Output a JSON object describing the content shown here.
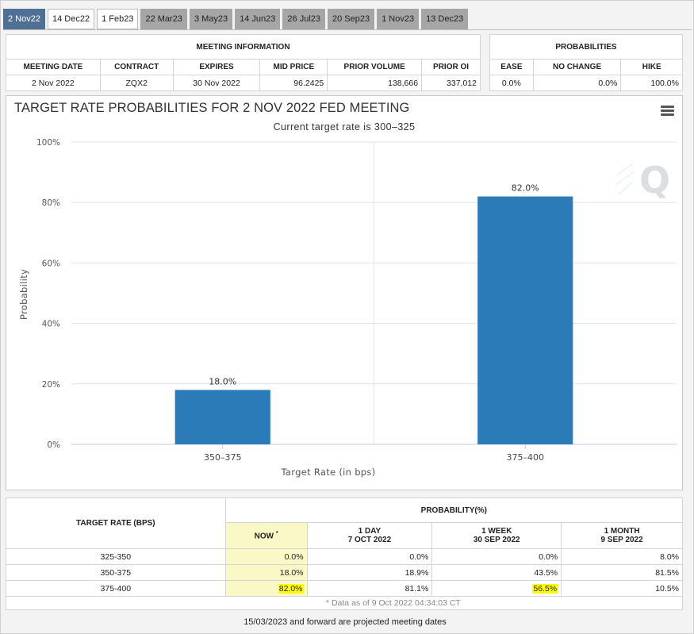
{
  "tabs": [
    {
      "label": "2 Nov22",
      "state": "active"
    },
    {
      "label": "14 Dec22",
      "state": "light"
    },
    {
      "label": "1 Feb23",
      "state": "light"
    },
    {
      "label": "22 Mar23",
      "state": "gray"
    },
    {
      "label": "3 May23",
      "state": "gray"
    },
    {
      "label": "14 Jun23",
      "state": "gray"
    },
    {
      "label": "26 Jul23",
      "state": "gray"
    },
    {
      "label": "20 Sep23",
      "state": "gray"
    },
    {
      "label": "1 Nov23",
      "state": "gray"
    },
    {
      "label": "13 Dec23",
      "state": "gray"
    }
  ],
  "meeting_info": {
    "title": "MEETING INFORMATION",
    "headers": [
      "MEETING DATE",
      "CONTRACT",
      "EXPIRES",
      "MID PRICE",
      "PRIOR VOLUME",
      "PRIOR OI"
    ],
    "row": [
      "2 Nov 2022",
      "ZQX2",
      "30 Nov 2022",
      "96.2425",
      "138,666",
      "337,012"
    ]
  },
  "probabilities": {
    "title": "PROBABILITIES",
    "headers": [
      "EASE",
      "NO CHANGE",
      "HIKE"
    ],
    "row": [
      "0.0%",
      "0.0%",
      "100.0%"
    ]
  },
  "chart_data": {
    "type": "bar",
    "title": "TARGET RATE PROBABILITIES FOR 2 NOV 2022 FED MEETING",
    "subtitle": "Current target rate is 300–325",
    "xlabel": "Target Rate (in bps)",
    "ylabel": "Probability",
    "categories": [
      "350–375",
      "375–400"
    ],
    "values": [
      18.0,
      82.0
    ],
    "data_labels": [
      "18.0%",
      "82.0%"
    ],
    "ylim": [
      0,
      100
    ],
    "yticks": [
      0,
      20,
      40,
      60,
      80,
      100
    ],
    "ytick_labels": [
      "0%",
      "20%",
      "40%",
      "60%",
      "80%",
      "100%"
    ],
    "bar_color": "#2b7bb9",
    "grid": true,
    "legend": "none"
  },
  "prob_table": {
    "row_header": "TARGET RATE (BPS)",
    "group_header": "PROBABILITY(%)",
    "columns": [
      {
        "line1": "NOW",
        "line2": "",
        "superscript": "*"
      },
      {
        "line1": "1 DAY",
        "line2": "7 OCT 2022",
        "superscript": ""
      },
      {
        "line1": "1 WEEK",
        "line2": "30 SEP 2022",
        "superscript": ""
      },
      {
        "line1": "1 MONTH",
        "line2": "9 SEP 2022",
        "superscript": ""
      }
    ],
    "rows": [
      {
        "rate": "325-350",
        "values": [
          "0.0%",
          "0.0%",
          "0.0%",
          "8.0%"
        ]
      },
      {
        "rate": "350-375",
        "values": [
          "18.0%",
          "18.9%",
          "43.5%",
          "81.5%"
        ]
      },
      {
        "rate": "375-400",
        "values": [
          "82.0%",
          "81.1%",
          "56.5%",
          "10.5%"
        ]
      }
    ],
    "highlight_color": "#ffff00",
    "note": "* Data as of 9 Oct 2022 04:34:03 CT"
  },
  "footer": "15/03/2023 and forward are projected meeting dates"
}
